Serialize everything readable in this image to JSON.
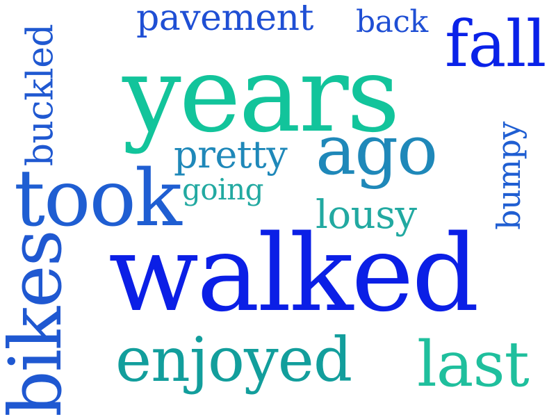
{
  "words": {
    "pavement": {
      "text": "pavement",
      "color": "#1f4fd4"
    },
    "back": {
      "text": "back",
      "color": "#1f4fd4"
    },
    "fall": {
      "text": "fall",
      "color": "#0a22e8"
    },
    "years": {
      "text": "years",
      "color": "#12c49b"
    },
    "ago": {
      "text": "ago",
      "color": "#1f88b9"
    },
    "pretty": {
      "text": "pretty",
      "color": "#1f88b9"
    },
    "going": {
      "text": "going",
      "color": "#22a9a1"
    },
    "took": {
      "text": "took",
      "color": "#1f5ed2"
    },
    "lousy": {
      "text": "lousy",
      "color": "#22a9a1"
    },
    "walked": {
      "text": "walked",
      "color": "#0b1fe6"
    },
    "enjoyed": {
      "text": "enjoyed",
      "color": "#129e9c"
    },
    "last": {
      "text": "last",
      "color": "#1fbf9d"
    },
    "buckled": {
      "text": "buckled",
      "color": "#1f58d1"
    },
    "bumpy": {
      "text": "bumpy",
      "color": "#1f5ed2"
    },
    "bikes": {
      "text": "bikes",
      "color": "#1f58d1"
    }
  }
}
